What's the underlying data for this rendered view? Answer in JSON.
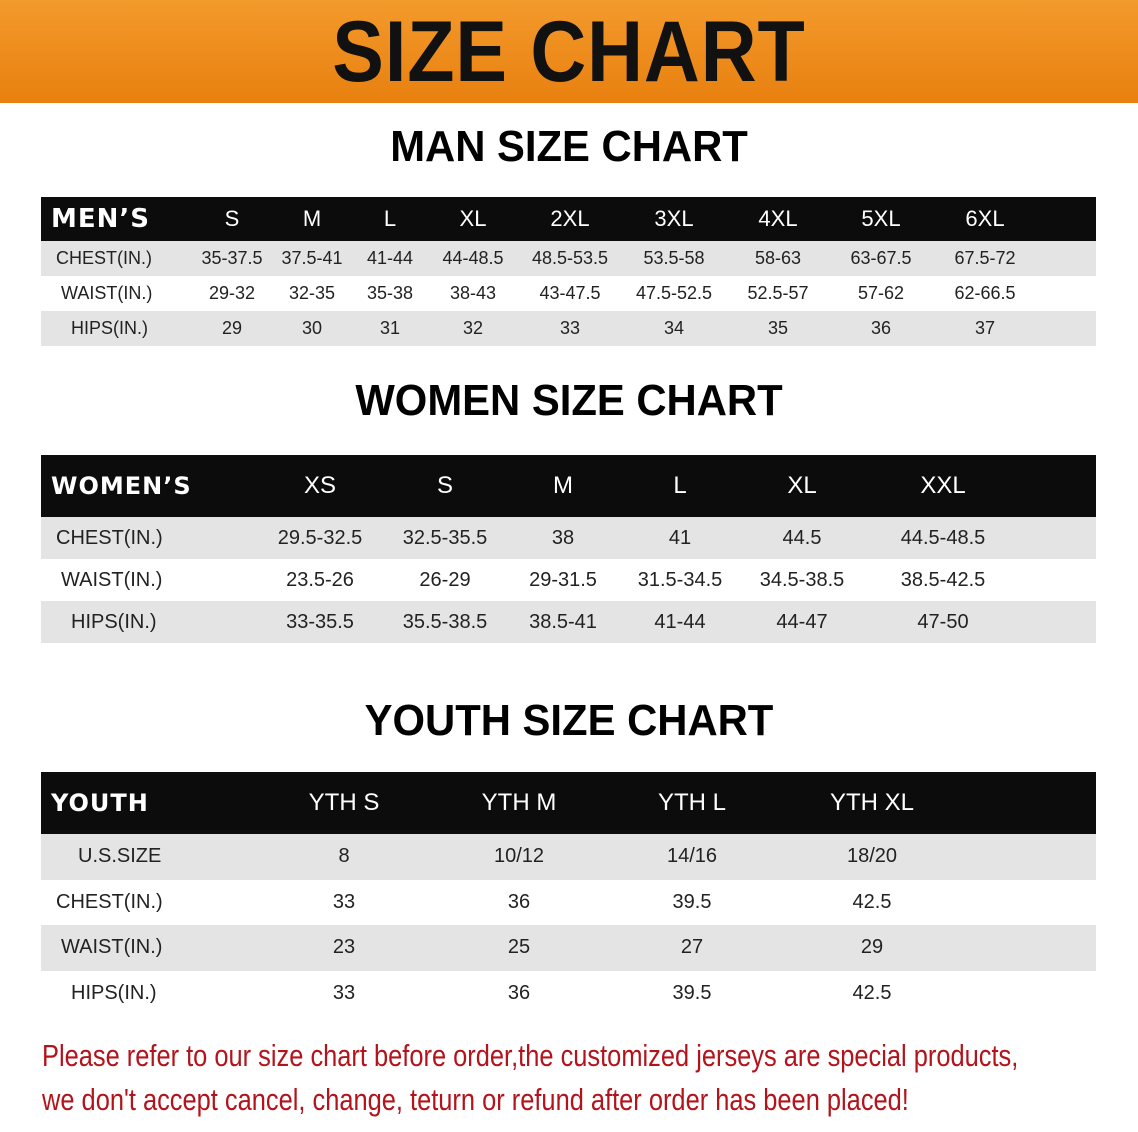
{
  "banner": {
    "title": "SIZE CHART",
    "color": "#ec8a1c"
  },
  "men": {
    "title": "MAN SIZE CHART",
    "header": [
      "MEN’S",
      "S",
      "M",
      "L",
      "XL",
      "2XL",
      "3XL",
      "4XL",
      "5XL",
      "6XL"
    ],
    "rows": [
      [
        "CHEST(IN.)",
        "35-37.5",
        "37.5-41",
        "41-44",
        "44-48.5",
        "48.5-53.5",
        "53.5-58",
        "58-63",
        "63-67.5",
        "67.5-72"
      ],
      [
        "WAIST(IN.)",
        "29-32",
        "32-35",
        "35-38",
        "38-43",
        "43-47.5",
        "47.5-52.5",
        "52.5-57",
        "57-62",
        "62-66.5"
      ],
      [
        "HIPS(IN.)",
        "29",
        "30",
        "31",
        "32",
        "33",
        "34",
        "35",
        "36",
        "37"
      ]
    ]
  },
  "women": {
    "title": "WOMEN SIZE CHART",
    "header": [
      "WOMEN’S",
      "XS",
      "S",
      "M",
      "L",
      "XL",
      "XXL"
    ],
    "rows": [
      [
        "CHEST(IN.)",
        "29.5-32.5",
        "32.5-35.5",
        "38",
        "41",
        "44.5",
        "44.5-48.5"
      ],
      [
        "WAIST(IN.)",
        "23.5-26",
        "26-29",
        "29-31.5",
        "31.5-34.5",
        "34.5-38.5",
        "38.5-42.5"
      ],
      [
        "HIPS(IN.)",
        "33-35.5",
        "35.5-38.5",
        "38.5-41",
        "41-44",
        "44-47",
        "47-50"
      ]
    ]
  },
  "youth": {
    "title": "YOUTH SIZE CHART",
    "header": [
      "YOUTH",
      "YTH S",
      "YTH M",
      "YTH L",
      "YTH XL"
    ],
    "rows": [
      [
        "U.S.SIZE",
        "8",
        "10/12",
        "14/16",
        "18/20"
      ],
      [
        "CHEST(IN.)",
        "33",
        "36",
        "39.5",
        "42.5"
      ],
      [
        "WAIST(IN.)",
        "23",
        "25",
        "27",
        "29"
      ],
      [
        "HIPS(IN.)",
        "33",
        "36",
        "39.5",
        "42.5"
      ]
    ]
  },
  "notice": {
    "line1": "Please refer to our size chart before order,the customized jerseys are special products,",
    "line2": "we don't accept cancel, change, teturn or refund after order has been placed!",
    "color": "#b3141c"
  }
}
